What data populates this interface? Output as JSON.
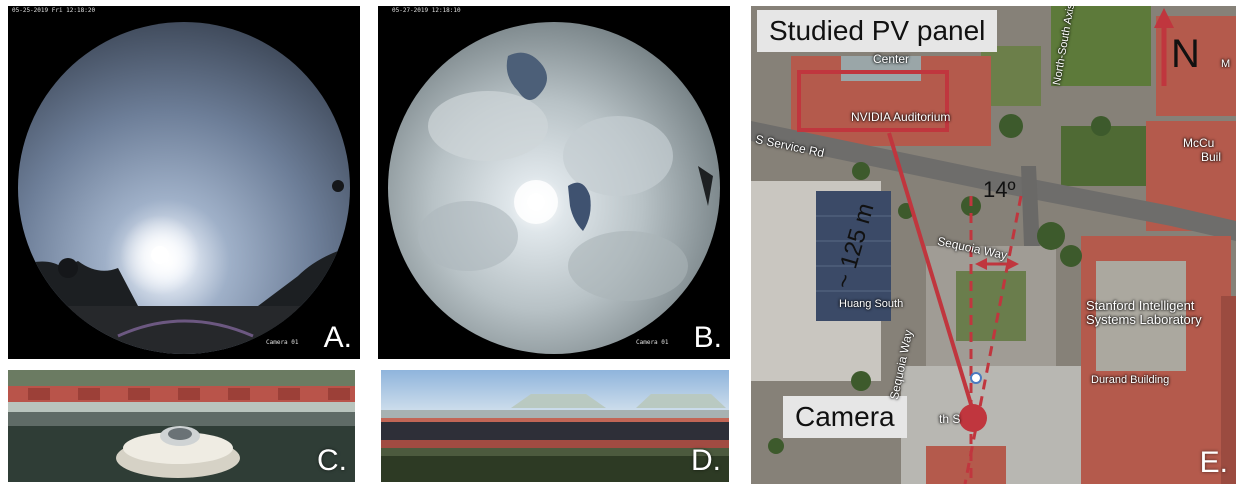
{
  "panels": {
    "a": {
      "label": "A.",
      "timestamp": "05-25-2019 Fri 12:18:20",
      "camera": "Camera 01"
    },
    "b": {
      "label": "B.",
      "timestamp": "05-27-2019 12:18:10",
      "camera": "Camera 01"
    },
    "c": {
      "label": "C."
    },
    "d": {
      "label": "D."
    },
    "e": {
      "label": "E.",
      "pv_callout": "Studied PV panel",
      "camera_callout": "Camera",
      "north": "N",
      "angle": "14º",
      "distance": "~ 125 m",
      "map_labels": {
        "center": "Center",
        "nvidia": "NVIDIA Auditorium",
        "service_rd": "S Service Rd",
        "north_south_axis": "North-South Axis",
        "sequoia_way": "Sequoia Way",
        "sequoia_way_2": "Sequoia Way",
        "huang_south": "Huang South",
        "stanford_lab_line1": "Stanford Intelligent",
        "stanford_lab_line2": "Systems Laboratory",
        "durand": "Durand Building",
        "mccullough": "McCu",
        "mccullough_2": "Buil",
        "m_partial": "M",
        "south_partial": "th S"
      }
    }
  },
  "colors": {
    "annotation_red": "#c0363e",
    "callout_bg": "#e6e6e6",
    "roof_tile": "#b9544a",
    "label_white": "#ffffff"
  }
}
